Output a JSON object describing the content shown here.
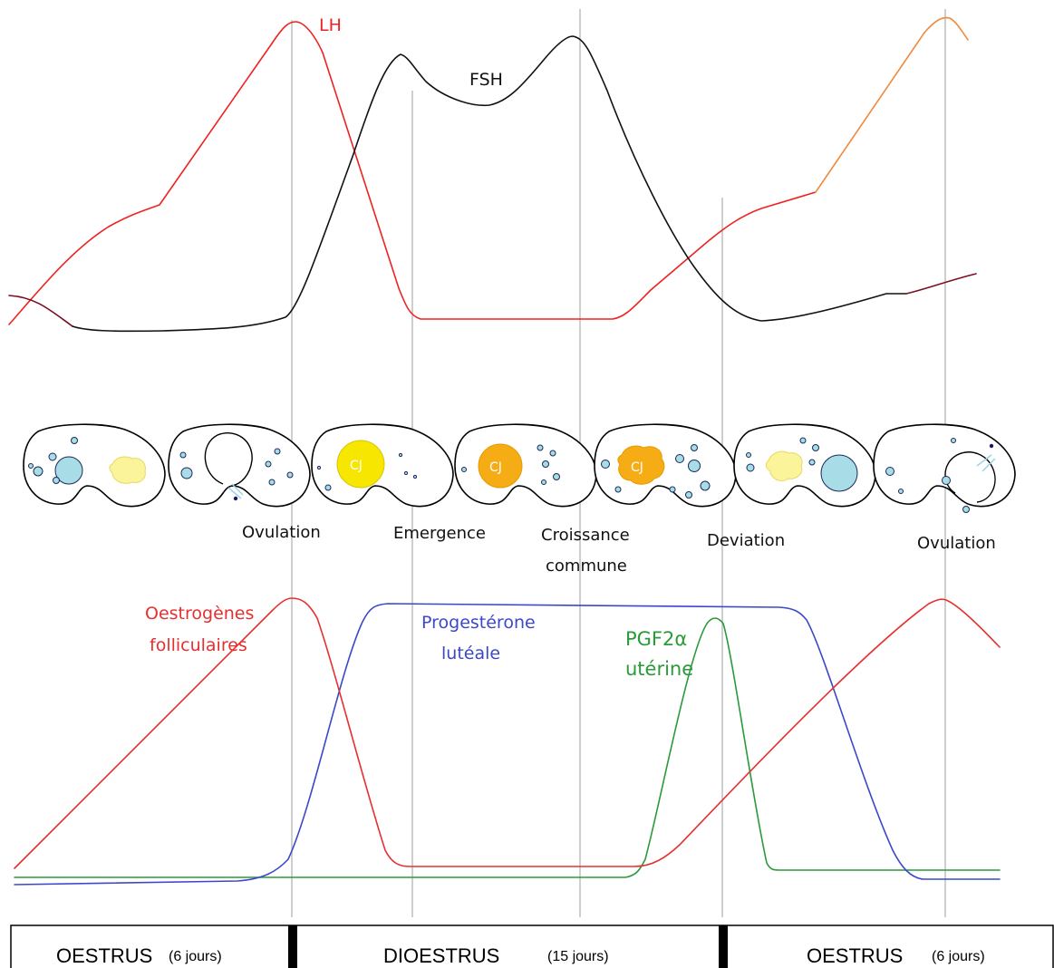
{
  "colors": {
    "lh": "#ee2222",
    "lh_late": "#f08a3c",
    "fsh": "#111111",
    "fsh_dark": "#7a1020",
    "estrogen": "#e53030",
    "progesterone": "#3c48c8",
    "pgf2a": "#2a9a3a",
    "follicle": "#a8dce6",
    "cl_yellow": "#f6e600",
    "cl_orange": "#f6ac14",
    "cl_pale": "#fbf49a",
    "phase_border": "#000000"
  },
  "hormones_top": {
    "lh_label": "LH",
    "fsh_label": "FSH"
  },
  "ovaries": [
    {
      "state": "follicles-with-pale-corpus"
    },
    {
      "state": "ovulation-rupture"
    },
    {
      "state": "corpus-luteum",
      "cl_label": "CJ"
    },
    {
      "state": "corpus-luteum-orange",
      "cl_label": "CJ"
    },
    {
      "state": "corpus-luteum-irregular",
      "cl_label": "CJ"
    },
    {
      "state": "dominant-follicle"
    },
    {
      "state": "ovulation-rupture"
    }
  ],
  "events": {
    "ovulation_1": "Ovulation",
    "emergence": "Emergence",
    "croissance_line1": "Croissance",
    "croissance_line2": "commune",
    "deviation": "Deviation",
    "ovulation_2": "Ovulation"
  },
  "hormones_bottom": {
    "estrogen_line1": "Oestrogènes",
    "estrogen_line2": "folliculaires",
    "progesterone_line1": "Progestérone",
    "progesterone_line2": "lutéale",
    "pgf_line1": "PGF2α",
    "pgf_line2": "utérine"
  },
  "phases": [
    {
      "name": "OESTRUS",
      "duration": "(6 jours)"
    },
    {
      "name": "DIOESTRUS",
      "duration": "(15 jours)"
    },
    {
      "name": "OESTRUS",
      "duration": "(6 jours)"
    }
  ]
}
